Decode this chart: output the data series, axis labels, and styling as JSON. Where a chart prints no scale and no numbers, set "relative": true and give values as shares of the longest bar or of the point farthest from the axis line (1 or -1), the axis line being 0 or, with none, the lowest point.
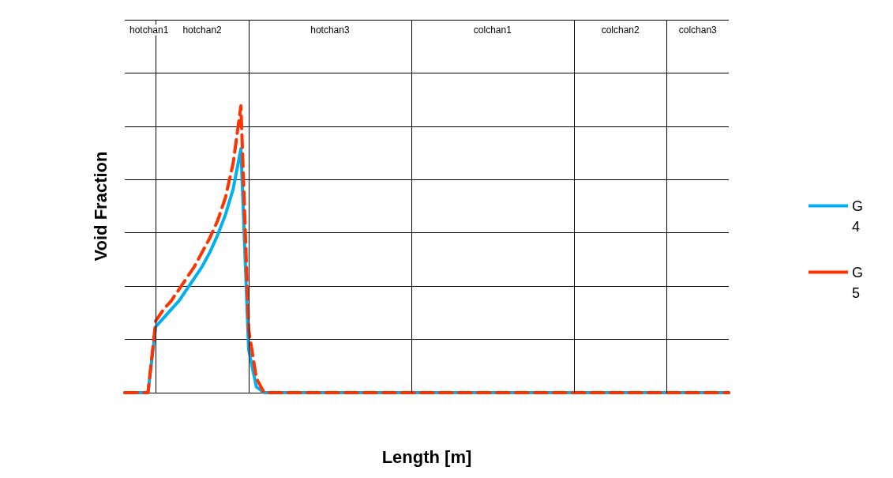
{
  "chart_data": {
    "type": "line",
    "relative": true,
    "xlabel": "Length [m]",
    "ylabel": "Void Fraction",
    "categories": [
      null,
      null,
      null,
      null,
      null,
      null,
      null,
      null,
      null,
      null,
      null,
      null,
      null,
      null,
      null,
      null,
      null,
      null,
      null,
      null,
      null,
      null,
      null,
      null,
      null,
      null,
      null,
      null,
      null,
      null,
      null,
      null,
      null,
      null,
      null,
      null,
      null,
      null,
      null,
      null,
      null,
      null,
      null,
      null,
      null,
      null,
      null,
      null,
      null,
      null,
      null,
      null,
      null,
      null,
      null,
      null,
      null,
      null,
      null,
      null,
      null,
      null,
      null,
      null,
      null,
      null,
      null,
      null,
      null,
      null,
      null,
      null,
      null,
      null,
      null,
      null,
      null,
      null,
      null
    ],
    "series": [
      {
        "name": "G 4",
        "color": "#00b0f0",
        "line_style": "solid",
        "values": [
          0,
          0,
          0,
          0,
          0.23,
          0.26,
          0.29,
          0.32,
          0.36,
          0.4,
          0.44,
          0.49,
          0.55,
          0.62,
          0.71,
          0.85,
          0.15,
          0.02,
          0,
          0,
          0,
          0,
          0,
          0,
          0,
          0,
          0,
          0,
          0,
          0,
          0,
          0,
          0,
          0,
          0,
          0,
          0,
          0,
          0,
          0,
          0,
          0,
          0,
          0,
          0,
          0,
          0,
          0,
          0,
          0,
          0,
          0,
          0,
          0,
          0,
          0,
          0,
          0,
          0,
          0,
          0,
          0,
          0,
          0,
          0,
          0,
          0,
          0,
          0,
          0,
          0,
          0,
          0,
          0,
          0,
          0,
          0,
          0,
          0
        ]
      },
      {
        "name": "G 5",
        "color": "#ff3300",
        "line_style": "dashed",
        "values": [
          0,
          0,
          0,
          0,
          0.25,
          0.29,
          0.32,
          0.36,
          0.4,
          0.44,
          0.49,
          0.54,
          0.6,
          0.68,
          0.8,
          1.0,
          0.22,
          0.05,
          0,
          0,
          0,
          0,
          0,
          0,
          0,
          0,
          0,
          0,
          0,
          0,
          0,
          0,
          0,
          0,
          0,
          0,
          0,
          0,
          0,
          0,
          0,
          0,
          0,
          0,
          0,
          0,
          0,
          0,
          0,
          0,
          0,
          0,
          0,
          0,
          0,
          0,
          0,
          0,
          0,
          0,
          0,
          0,
          0,
          0,
          0,
          0,
          0,
          0,
          0,
          0,
          0,
          0,
          0,
          0,
          0,
          0,
          0,
          0,
          0
        ]
      }
    ],
    "annotations": [
      "hotchan1",
      "hotchan2",
      "hotchan3",
      "colchan1",
      "colchan2",
      "colchan3"
    ],
    "marker": "none",
    "grid": true,
    "legend": "right"
  }
}
